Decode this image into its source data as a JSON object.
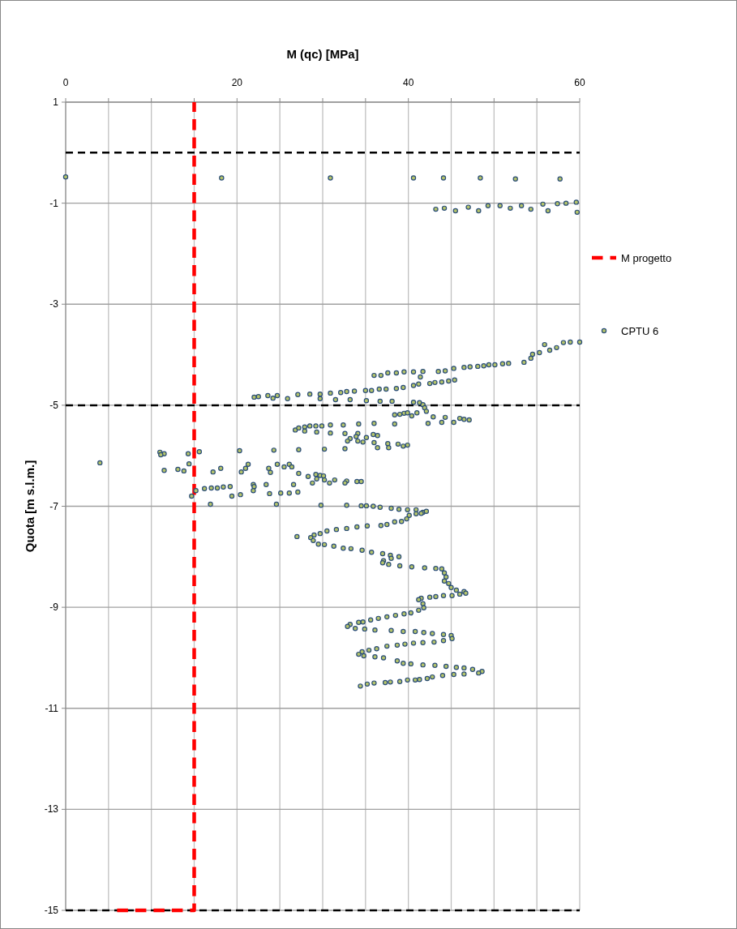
{
  "chart_data": {
    "type": "scatter",
    "xlabel": "M (qc) [MPa]",
    "ylabel": "Quota [m s.l.m.]",
    "xlim": [
      0,
      60
    ],
    "ylim": [
      -15,
      1
    ],
    "xticks": [
      0,
      {
        "value": 5,
        "label": null
      },
      {
        "value": 10,
        "label": null
      },
      {
        "value": 15,
        "label": null
      },
      20,
      {
        "value": 25,
        "label": null
      },
      {
        "value": 30,
        "label": null
      },
      {
        "value": 35,
        "label": null
      },
      40,
      {
        "value": 45,
        "label": null
      },
      {
        "value": 50,
        "label": null
      },
      {
        "value": 55,
        "label": null
      },
      60
    ],
    "yticks": [
      1,
      -1,
      -3,
      -5,
      -7,
      -9,
      -11,
      -13,
      -15
    ],
    "grid": true,
    "legend": "right",
    "ref_lines": [
      {
        "axis": "y",
        "value": 0,
        "color": "#000000",
        "line_style": "dashed"
      },
      {
        "axis": "y",
        "value": -5,
        "color": "#000000",
        "line_style": "dashed"
      },
      {
        "axis": "y",
        "value": -15,
        "color": "#000000",
        "line_style": "dashed"
      }
    ],
    "series": [
      {
        "name": "M progetto",
        "type": "line",
        "color": "#ff0000",
        "line_style": "dashed",
        "marker": "none",
        "x": [
          6,
          15,
          15
        ],
        "values": [
          -15,
          -15,
          1
        ]
      },
      {
        "name": "CPTU 6",
        "color": "#2a4d78",
        "marker": "circle",
        "x": [
          0,
          18.2,
          30.9,
          40.6,
          44.1,
          48.4,
          52.5,
          57.7,
          43.2,
          44.2,
          45.5,
          47,
          48.2,
          49.3,
          50.7,
          51.9,
          53.2,
          54.3,
          55.7,
          56.3,
          57.4,
          58.4,
          59.6,
          59.7,
          60,
          58.9,
          58.1,
          57.3,
          56.5,
          55.9,
          55.3,
          54.5,
          54.3,
          53.5,
          51.7,
          51.0,
          50.1,
          49.4,
          48.8,
          48.1,
          47.2,
          46.5,
          45.3,
          44.3,
          43.5,
          45.4,
          44.7,
          43.9,
          43.1,
          42.5,
          41.7,
          41.4,
          41.2,
          40.6,
          40.6,
          39.5,
          39.4,
          38.6,
          38.6,
          37.6,
          37.4,
          36.8,
          36.6,
          36.0,
          35.7,
          35.0,
          33.7,
          32.8,
          32.1,
          30.9,
          29.7,
          28.5,
          27.1,
          25.9,
          24.7,
          24.2,
          23.6,
          22.5,
          22.0,
          33.2,
          31.5,
          29.7,
          35.1,
          36.7,
          38.1,
          40.6,
          41.3,
          41.7,
          41.9,
          42.1,
          38.4,
          39.0,
          39.5,
          39.9,
          40.4,
          41.0,
          42.3,
          42.9,
          43.9,
          44.3,
          45.3,
          46.0,
          46.5,
          47.1,
          38.4,
          26.8,
          27.2,
          27.9,
          28.5,
          29.2,
          29.9,
          30.9,
          32.4,
          34.2,
          36.0,
          27.9,
          29.3,
          30.9,
          32.6,
          34.1,
          35.9,
          36.4,
          33.9,
          33.2,
          32.9,
          34.1,
          34.7,
          35.1,
          32.6,
          36.0,
          36.4,
          37.6,
          37.7,
          38.8,
          39.4,
          39.9,
          30.2,
          27.2,
          24.3,
          20.3,
          11.0,
          11.5,
          14.3,
          15.6,
          11.1,
          14.4,
          4.0,
          11.5,
          13.1,
          13.8,
          17.2,
          18.1,
          20.5,
          21.0,
          21.3,
          23.7,
          23.9,
          24.7,
          25.5,
          26.1,
          26.4,
          27.2,
          28.3,
          28.8,
          29.2,
          29.7,
          30.1,
          29.3,
          30.2,
          30.8,
          31.4,
          32.8,
          32.6,
          34.0,
          34.5,
          15.2,
          16.2,
          17.0,
          17.7,
          18.4,
          19.2,
          14.7,
          16.9,
          19.4,
          20.4,
          21.9,
          22.0,
          21.9,
          23.4,
          23.8,
          24.6,
          25.1,
          26.1,
          26.6,
          27.1,
          29.8,
          32.8,
          34.5,
          35.1,
          35.9,
          36.7,
          38.0,
          38.9,
          39.9,
          40.9,
          41.7,
          42.1,
          41.5,
          40.9,
          40.1,
          39.8,
          39.2,
          38.4,
          37.5,
          36.8,
          35.2,
          34.0,
          32.8,
          31.6,
          30.5,
          29.7,
          29.0,
          28.6,
          27.0,
          28.9,
          29.5,
          30.2,
          31.3,
          32.4,
          33.3,
          34.6,
          35.7,
          37.0,
          37.9,
          38.9,
          38.0,
          37.1,
          37.0,
          37.7,
          39.0,
          40.4,
          41.9,
          43.2,
          43.9,
          44.2,
          44.4,
          44.2,
          44.7,
          45.0,
          45.6,
          46.5,
          46.7,
          46.0,
          45.1,
          44.1,
          43.2,
          42.5,
          41.5,
          41.2,
          41.7,
          41.8,
          41.2,
          40.3,
          39.5,
          38.5,
          37.5,
          36.5,
          35.6,
          34.7,
          34.2,
          33.2,
          32.9,
          33.8,
          34.9,
          36.1,
          38.0,
          39.4,
          40.8,
          41.8,
          42.8,
          44.1,
          45.0,
          45.1,
          44.1,
          43.0,
          41.7,
          40.6,
          39.6,
          38.7,
          37.5,
          36.3,
          35.4,
          34.6,
          34.2,
          34.8,
          36.1,
          37.1,
          38.7,
          39.4,
          40.3,
          41.7,
          43.1,
          44.4,
          45.6,
          46.5,
          47.5,
          48.6,
          48.2,
          46.5,
          45.3,
          44.0,
          42.8,
          42.2,
          41.3,
          40.8,
          39.9,
          39.0,
          37.9,
          37.3,
          36.0,
          35.2,
          34.4
        ],
        "values": [
          -0.48,
          -0.5,
          -0.5,
          -0.5,
          -0.5,
          -0.5,
          -0.52,
          -0.52,
          -1.12,
          -1.1,
          -1.15,
          -1.08,
          -1.15,
          -1.05,
          -1.05,
          -1.1,
          -1.05,
          -1.12,
          -1.02,
          -1.15,
          -1.01,
          -1.0,
          -0.98,
          -1.18,
          -3.75,
          -3.75,
          -3.76,
          -3.86,
          -3.91,
          -3.8,
          -3.96,
          -3.99,
          -4.07,
          -4.15,
          -4.17,
          -4.18,
          -4.2,
          -4.2,
          -4.22,
          -4.23,
          -4.24,
          -4.25,
          -4.27,
          -4.32,
          -4.33,
          -4.5,
          -4.52,
          -4.54,
          -4.55,
          -4.57,
          -4.33,
          -4.44,
          -4.58,
          -4.34,
          -4.61,
          -4.34,
          -4.65,
          -4.36,
          -4.67,
          -4.36,
          -4.68,
          -4.41,
          -4.68,
          -4.41,
          -4.71,
          -4.71,
          -4.72,
          -4.73,
          -4.75,
          -4.76,
          -4.78,
          -4.78,
          -4.79,
          -4.87,
          -4.81,
          -4.86,
          -4.81,
          -4.83,
          -4.84,
          -4.89,
          -4.89,
          -4.87,
          -4.91,
          -4.92,
          -4.92,
          -4.94,
          -4.95,
          -4.99,
          -5.05,
          -5.12,
          -5.19,
          -5.18,
          -5.16,
          -5.15,
          -5.21,
          -5.15,
          -5.36,
          -5.23,
          -5.34,
          -5.24,
          -5.34,
          -5.26,
          -5.28,
          -5.29,
          -5.37,
          -5.49,
          -5.45,
          -5.43,
          -5.41,
          -5.41,
          -5.41,
          -5.39,
          -5.39,
          -5.37,
          -5.36,
          -5.51,
          -5.53,
          -5.55,
          -5.56,
          -5.56,
          -5.58,
          -5.6,
          -5.62,
          -5.66,
          -5.71,
          -5.71,
          -5.73,
          -5.64,
          -5.86,
          -5.74,
          -5.84,
          -5.76,
          -5.84,
          -5.77,
          -5.81,
          -5.79,
          -5.87,
          -5.88,
          -5.89,
          -5.9,
          -5.93,
          -5.96,
          -5.96,
          -5.92,
          -5.98,
          -6.16,
          -6.14,
          -6.29,
          -6.27,
          -6.3,
          -6.32,
          -6.25,
          -6.32,
          -6.25,
          -6.17,
          -6.25,
          -6.33,
          -6.17,
          -6.22,
          -6.17,
          -6.22,
          -6.35,
          -6.41,
          -6.54,
          -6.37,
          -6.39,
          -6.4,
          -6.46,
          -6.48,
          -6.54,
          -6.48,
          -6.5,
          -6.54,
          -6.51,
          -6.51,
          -6.69,
          -6.65,
          -6.64,
          -6.64,
          -6.62,
          -6.61,
          -6.8,
          -6.96,
          -6.8,
          -6.77,
          -6.57,
          -6.61,
          -6.69,
          -6.57,
          -6.75,
          -6.96,
          -6.74,
          -6.74,
          -6.57,
          -6.72,
          -6.98,
          -6.98,
          -6.99,
          -6.99,
          -7.0,
          -7.02,
          -7.04,
          -7.06,
          -7.07,
          -7.07,
          -7.12,
          -7.1,
          -7.14,
          -7.15,
          -7.18,
          -7.25,
          -7.3,
          -7.31,
          -7.36,
          -7.38,
          -7.39,
          -7.41,
          -7.44,
          -7.46,
          -7.49,
          -7.54,
          -7.57,
          -7.62,
          -7.6,
          -7.68,
          -7.75,
          -7.76,
          -7.79,
          -7.83,
          -7.84,
          -7.87,
          -7.91,
          -7.94,
          -7.97,
          -8.0,
          -8.03,
          -8.08,
          -8.12,
          -8.15,
          -8.18,
          -8.2,
          -8.22,
          -8.23,
          -8.24,
          -8.32,
          -8.4,
          -8.48,
          -8.53,
          -8.61,
          -8.66,
          -8.69,
          -8.72,
          -8.74,
          -8.77,
          -8.77,
          -8.79,
          -8.8,
          -8.82,
          -8.85,
          -8.93,
          -9.01,
          -9.06,
          -9.11,
          -9.13,
          -9.16,
          -9.19,
          -9.22,
          -9.25,
          -9.29,
          -9.3,
          -9.34,
          -9.38,
          -9.42,
          -9.43,
          -9.45,
          -9.46,
          -9.48,
          -9.48,
          -9.5,
          -9.52,
          -9.54,
          -9.56,
          -9.62,
          -9.66,
          -9.69,
          -9.7,
          -9.71,
          -9.73,
          -9.75,
          -9.77,
          -9.82,
          -9.85,
          -9.88,
          -9.93,
          -9.96,
          -9.98,
          -10.0,
          -10.06,
          -10.11,
          -10.12,
          -10.14,
          -10.15,
          -10.17,
          -10.19,
          -10.2,
          -10.23,
          -10.27,
          -10.3,
          -10.32,
          -10.33,
          -10.35,
          -10.38,
          -10.41,
          -10.43,
          -10.44,
          -10.44,
          -10.47,
          -10.48,
          -10.49,
          -10.5,
          -10.52,
          -10.56
        ]
      }
    ]
  }
}
